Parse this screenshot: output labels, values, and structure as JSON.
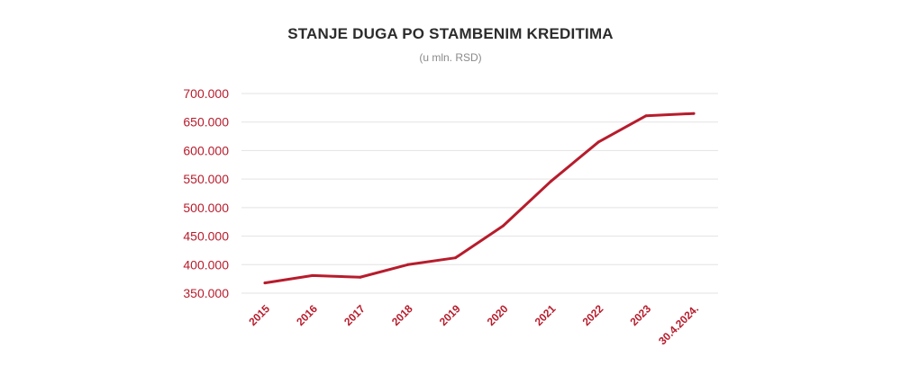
{
  "chart_data": {
    "type": "line",
    "title": "STANJE DUGA PO STAMBENIM KREDITIMA",
    "subtitle": "(u mln. RSD)",
    "xlabel": "",
    "ylabel": "",
    "categories": [
      "2015",
      "2016",
      "2017",
      "2018",
      "2019",
      "2020",
      "2021",
      "2022",
      "2023",
      "30.4.2024."
    ],
    "series": [
      {
        "name": "Stanje duga po stambenim kreditima",
        "values": [
          368000,
          381000,
          378000,
          400000,
          412000,
          468000,
          546000,
          615000,
          661000,
          665000
        ]
      }
    ],
    "yticks": [
      350000,
      400000,
      450000,
      500000,
      550000,
      600000,
      650000,
      700000
    ],
    "ytick_labels": [
      "350.000",
      "400.000",
      "450.000",
      "500.000",
      "550.000",
      "600.000",
      "650.000",
      "700.000"
    ],
    "ylim": [
      350000,
      700000
    ],
    "grid": true,
    "line_color": "#b71c2c",
    "label_color": "#b71c2c"
  }
}
